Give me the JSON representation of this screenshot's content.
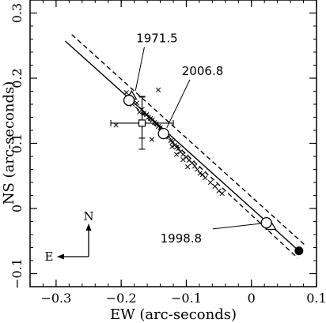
{
  "chart_data": {
    "type": "scatter",
    "title": "",
    "xlabel": "EW (arc-seconds)",
    "ylabel": "NS (arc-seconds)",
    "xlim": [
      -0.34,
      0.1
    ],
    "ylim": [
      -0.12,
      0.32
    ],
    "x_ticks": [
      -0.3,
      -0.2,
      -0.1,
      0,
      0.1
    ],
    "x_tick_labels": [
      "−0.3",
      "−0.2",
      "−0.1",
      "0",
      "0.1"
    ],
    "y_ticks": [
      -0.1,
      0,
      0.1,
      0.2,
      0.3
    ],
    "y_tick_labels": [
      "−0.1",
      "0",
      "0.1",
      "0.2",
      "0.3"
    ],
    "grid": false,
    "legend": "none",
    "primary_star": {
      "x": 0.073,
      "y": -0.065
    },
    "solid_orbit": [
      [
        -0.286,
        0.257
      ],
      [
        0.073,
        -0.065
      ]
    ],
    "dashed_orbit_upper": [
      [
        -0.276,
        0.267
      ],
      [
        0.081,
        -0.055
      ]
    ],
    "dashed_orbit_lower": [
      [
        -0.187,
        0.164
      ],
      [
        0.071,
        -0.076
      ]
    ],
    "observations": [
      {
        "x": -0.192,
        "y": 0.178
      },
      {
        "x": -0.185,
        "y": 0.172
      },
      {
        "x": -0.183,
        "y": 0.16
      },
      {
        "x": -0.176,
        "y": 0.162
      },
      {
        "x": -0.172,
        "y": 0.148
      },
      {
        "x": -0.168,
        "y": 0.152
      },
      {
        "x": -0.165,
        "y": 0.146
      },
      {
        "x": -0.161,
        "y": 0.144
      },
      {
        "x": -0.158,
        "y": 0.14
      },
      {
        "x": -0.155,
        "y": 0.138
      },
      {
        "x": -0.152,
        "y": 0.136
      },
      {
        "x": -0.149,
        "y": 0.132
      },
      {
        "x": -0.146,
        "y": 0.13
      },
      {
        "x": -0.143,
        "y": 0.126
      },
      {
        "x": -0.14,
        "y": 0.124
      },
      {
        "x": -0.137,
        "y": 0.118
      },
      {
        "x": -0.134,
        "y": 0.118
      },
      {
        "x": -0.131,
        "y": 0.112
      },
      {
        "x": -0.127,
        "y": 0.11
      },
      {
        "x": -0.124,
        "y": 0.104
      },
      {
        "x": -0.121,
        "y": 0.102
      },
      {
        "x": -0.118,
        "y": 0.097
      },
      {
        "x": -0.115,
        "y": 0.094
      },
      {
        "x": -0.112,
        "y": 0.092
      },
      {
        "x": -0.109,
        "y": 0.087
      },
      {
        "x": -0.105,
        "y": 0.083
      },
      {
        "x": -0.1,
        "y": 0.079
      },
      {
        "x": -0.096,
        "y": 0.074
      },
      {
        "x": -0.091,
        "y": 0.07
      },
      {
        "x": -0.087,
        "y": 0.065
      },
      {
        "x": -0.083,
        "y": 0.06
      },
      {
        "x": -0.079,
        "y": 0.054
      },
      {
        "x": -0.075,
        "y": 0.052
      },
      {
        "x": -0.071,
        "y": 0.047
      },
      {
        "x": -0.063,
        "y": 0.04
      },
      {
        "x": -0.056,
        "y": 0.034
      },
      {
        "x": -0.05,
        "y": 0.027
      },
      {
        "x": -0.045,
        "y": 0.023
      },
      {
        "x": -0.143,
        "y": 0.182
      },
      {
        "x": -0.208,
        "y": 0.128
      },
      {
        "x": -0.153,
        "y": 0.106
      },
      {
        "x": -0.115,
        "y": 0.083
      },
      {
        "x": -0.105,
        "y": 0.075
      },
      {
        "x": -0.098,
        "y": 0.064
      },
      {
        "x": -0.122,
        "y": 0.095
      }
    ],
    "open_circles": [
      {
        "x": -0.188,
        "y": 0.166
      },
      {
        "x": -0.135,
        "y": 0.115
      },
      {
        "x": 0.023,
        "y": -0.022
      }
    ],
    "triangles": [
      {
        "x": -0.184,
        "y": 0.173
      },
      {
        "x": 0.03,
        "y": -0.027
      }
    ],
    "square_point": {
      "x": -0.168,
      "y": 0.131,
      "x_err": 0.048,
      "y_err": 0.04
    },
    "extra_error_bar": {
      "x": -0.168,
      "y": 0.14,
      "y_err": 0.032
    },
    "annotations": [
      {
        "text": "1971.5",
        "x": -0.145,
        "y": 0.255,
        "target_x": -0.178,
        "target_y": 0.181
      },
      {
        "text": "2006.8",
        "x": -0.075,
        "y": 0.205,
        "target_x": -0.13,
        "target_y": 0.124
      },
      {
        "text": "1998.8",
        "x": -0.108,
        "y": -0.052,
        "target_x": 0.015,
        "target_y": -0.023
      }
    ],
    "compass": {
      "north_label": "N",
      "east_label": "E"
    }
  }
}
